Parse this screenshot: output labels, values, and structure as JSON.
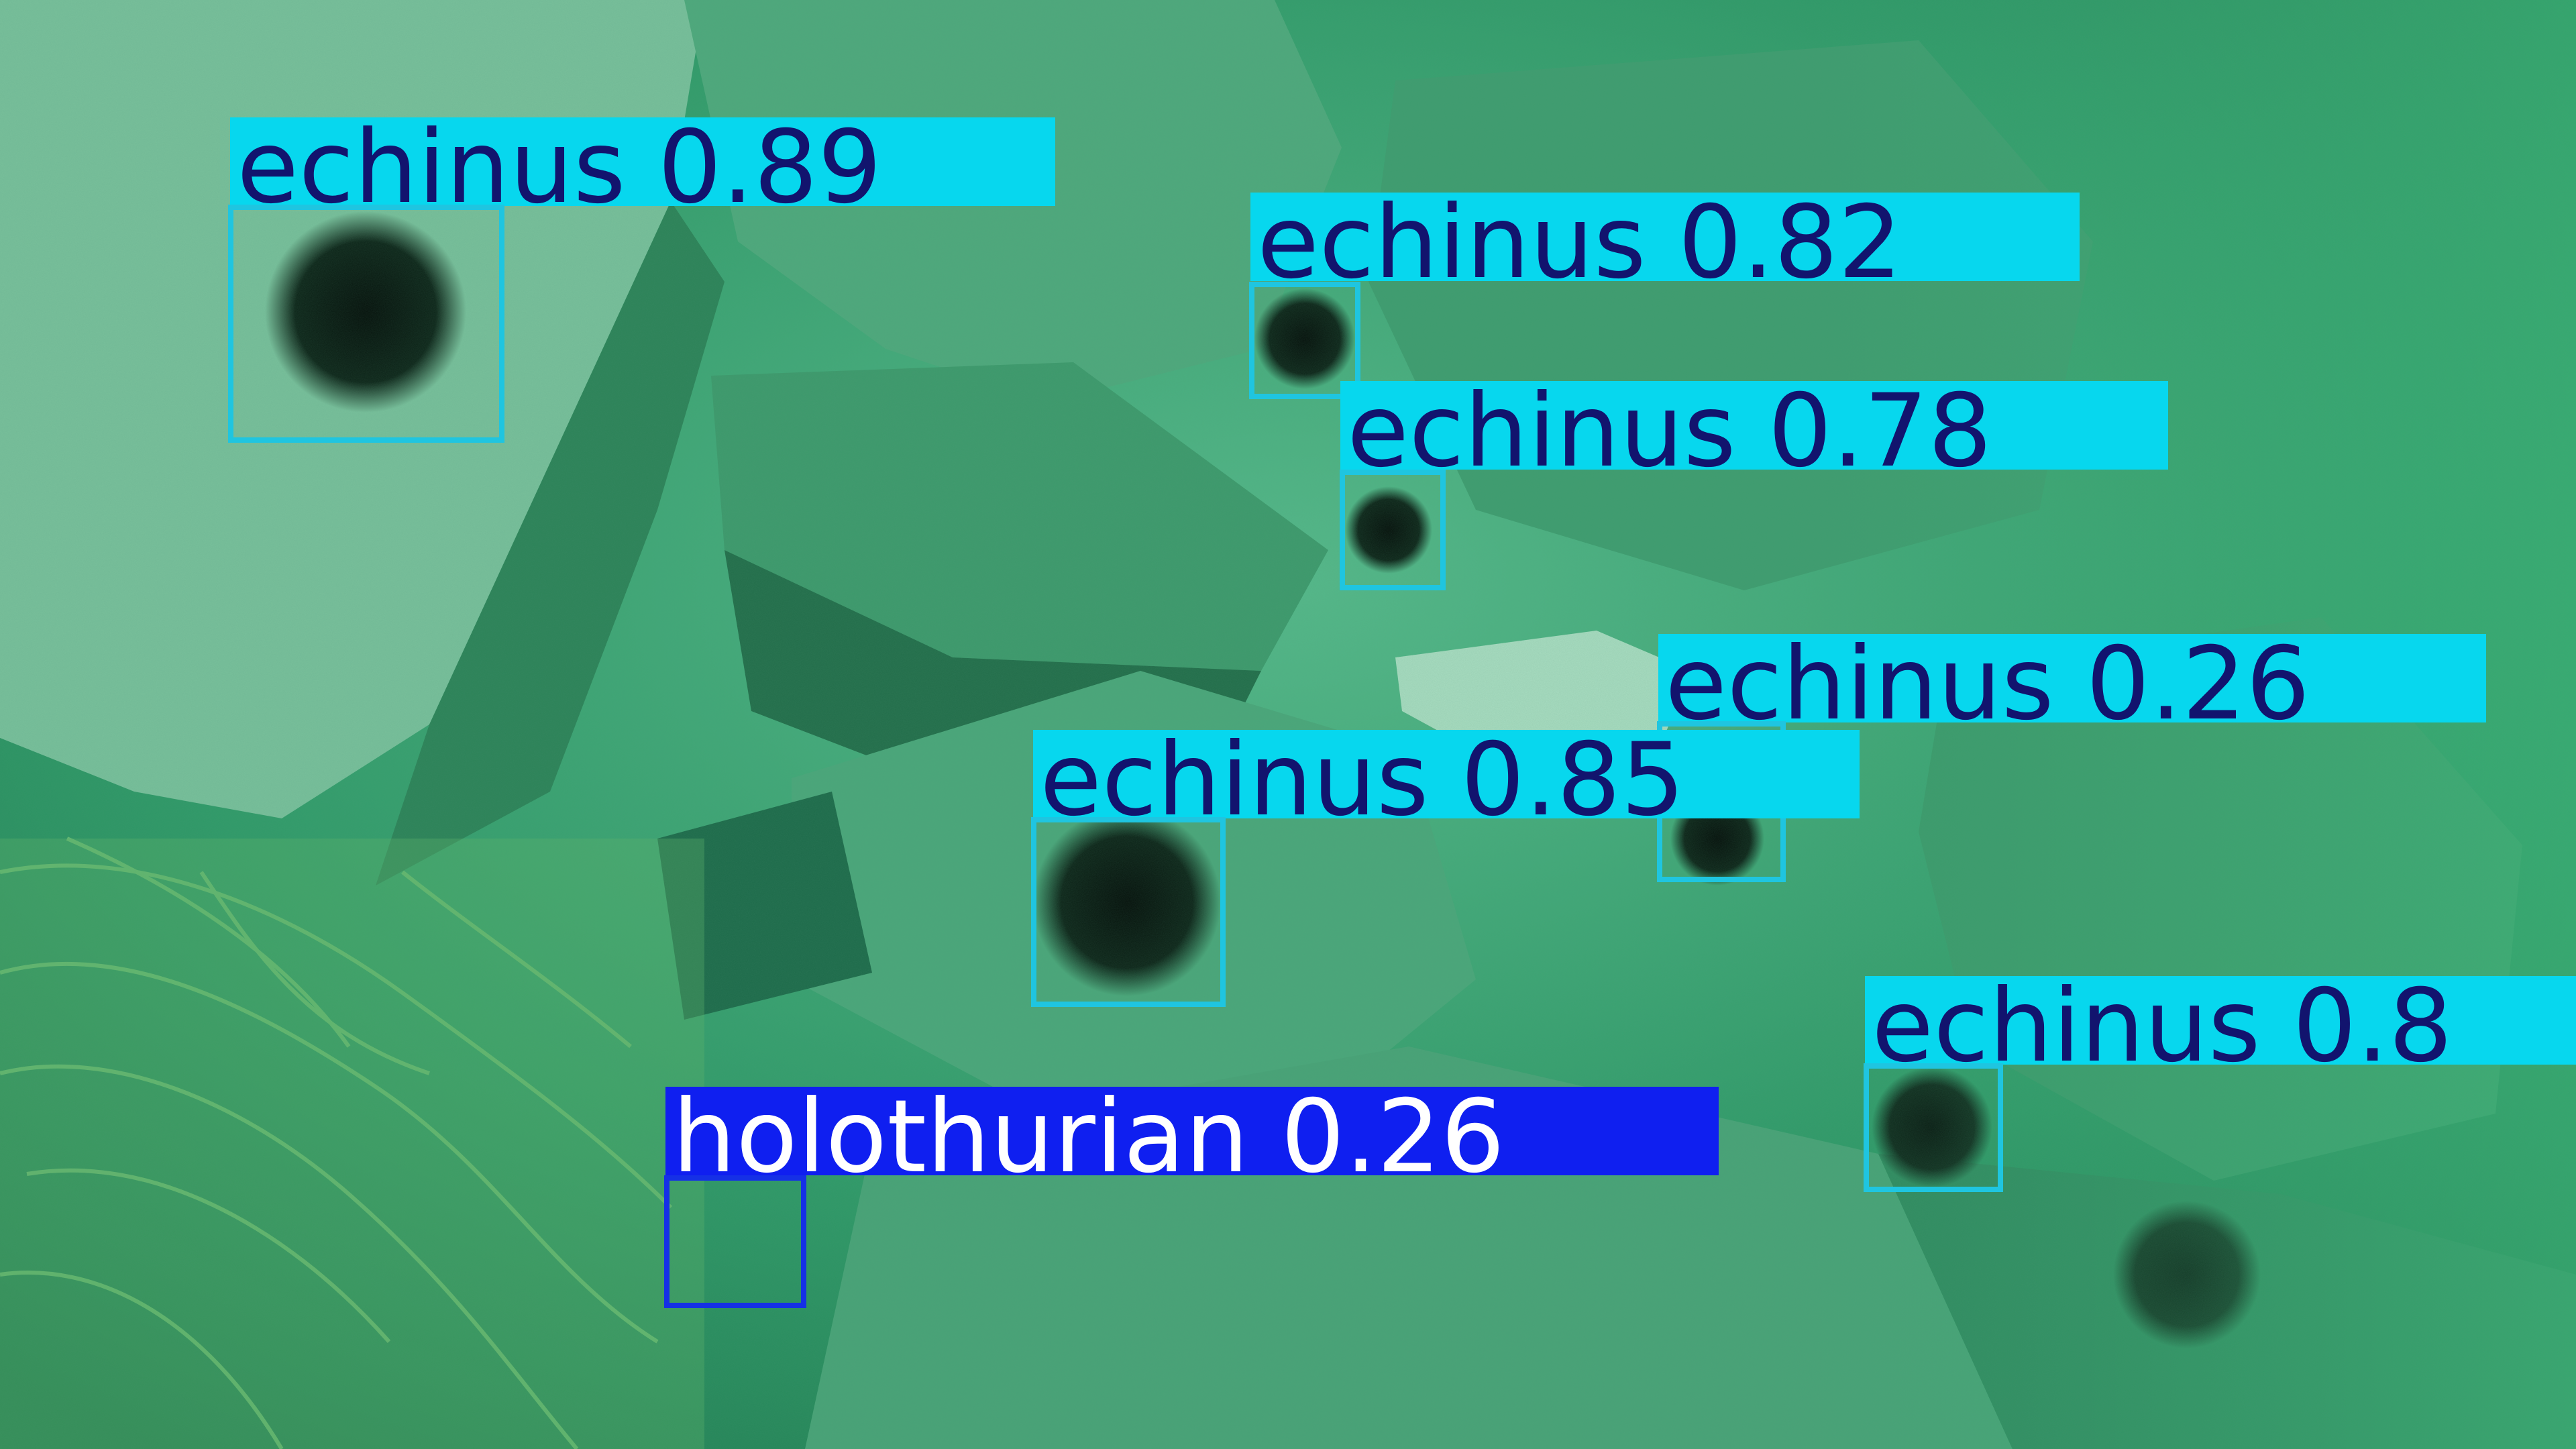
{
  "image": {
    "description_colors": {
      "water": "#2f9a68",
      "rock_light": "#7cc9a2",
      "rock_dark": "#1d6b4a",
      "urchin": "#0d2418",
      "seaweed": "#5fb46a"
    }
  },
  "detections": [
    {
      "label": "echinus",
      "score": "0.89",
      "tag_text": "echinus 0.89",
      "box_color": "#1fc5e0",
      "tag_bg": "#07d7ee",
      "tag_fg": "#12146e",
      "icon": "sea-urchin"
    },
    {
      "label": "echinus",
      "score": "0.82",
      "tag_text": "echinus 0.82",
      "box_color": "#1fc5e0",
      "tag_bg": "#07d7ee",
      "tag_fg": "#12146e",
      "icon": "sea-urchin"
    },
    {
      "label": "echinus",
      "score": "0.78",
      "tag_text": "echinus 0.78",
      "box_color": "#1fc5e0",
      "tag_bg": "#07d7ee",
      "tag_fg": "#12146e",
      "icon": "sea-urchin"
    },
    {
      "label": "echinus",
      "score": "0.26",
      "tag_text": "echinus 0.26",
      "box_color": "#1fc5e0",
      "tag_bg": "#07d7ee",
      "tag_fg": "#12146e",
      "icon": "sea-urchin"
    },
    {
      "label": "echinus",
      "score": "0.85",
      "tag_text": "echinus 0.85",
      "box_color": "#1fc5e0",
      "tag_bg": "#07d7ee",
      "tag_fg": "#12146e",
      "icon": "sea-urchin"
    },
    {
      "label": "echinus",
      "score": "0.8",
      "tag_text": "echinus 0.8",
      "box_color": "#1fc5e0",
      "tag_bg": "#07d7ee",
      "tag_fg": "#12146e",
      "icon": "sea-urchin"
    },
    {
      "label": "holothurian",
      "score": "0.26",
      "tag_text": "holothurian 0.26",
      "box_color": "#1530e6",
      "tag_bg": "#0f1ff0",
      "tag_fg": "#ffffff",
      "icon": "sea-cucumber"
    }
  ]
}
